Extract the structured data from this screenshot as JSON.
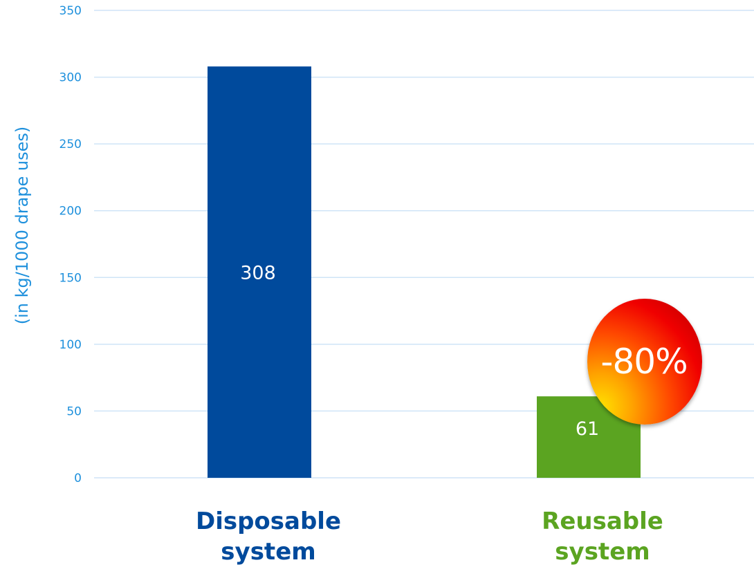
{
  "chart_data": {
    "type": "bar",
    "categories": [
      "Disposable\nsystem",
      "Reusable\nsystem"
    ],
    "values": [
      308,
      61
    ],
    "data_labels": [
      "308",
      "61"
    ],
    "colors": [
      "#004a9c",
      "#5ba421"
    ],
    "title": "",
    "xlabel": "",
    "ylabel": "(in kg/1000 drape uses)",
    "ylim": [
      0,
      350
    ],
    "yticks": [
      0,
      50,
      100,
      150,
      200,
      250,
      300,
      350
    ],
    "grid": true,
    "legend": "none",
    "annotation": "-80%"
  },
  "colors": {
    "axis_text": "#1e90dc",
    "gridline": "#cfe4f7"
  }
}
